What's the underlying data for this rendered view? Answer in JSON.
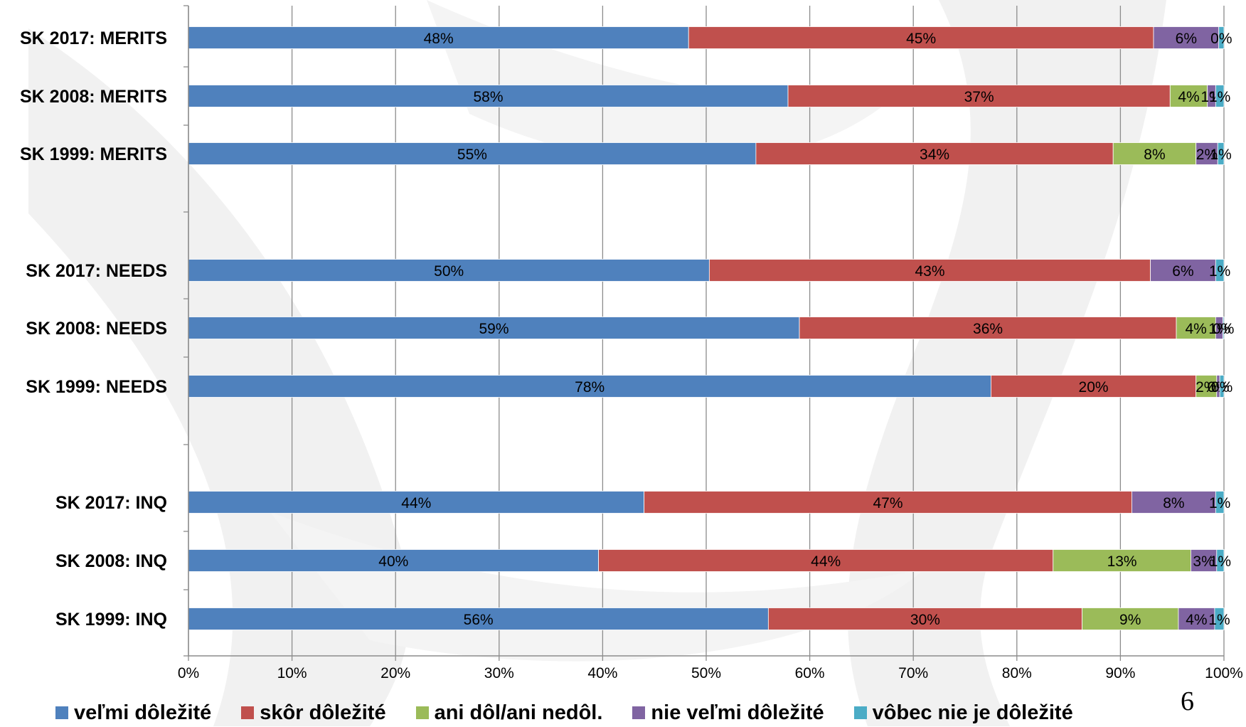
{
  "chart_data": {
    "type": "bar",
    "orientation": "horizontal",
    "stacked": true,
    "categories": [
      "SK 2017: MERITS",
      "SK 2008: MERITS",
      "SK 1999: MERITS",
      "SK 2017: NEEDS",
      "SK 2008: NEEDS",
      "SK 1999: NEEDS",
      "SK 2017: INQ",
      "SK 2008: INQ",
      "SK 1999: INQ"
    ],
    "series": [
      {
        "name": "veľmi dôležité",
        "color": "#4f81bd",
        "values": [
          48.3,
          57.9,
          54.8,
          50.3,
          59.0,
          77.5,
          44.0,
          39.6,
          56.0
        ],
        "labels": [
          "48%",
          "58%",
          "55%",
          "50%",
          "59%",
          "78%",
          "44%",
          "40%",
          "56%"
        ]
      },
      {
        "name": "skôr dôležité",
        "color": "#c0504d",
        "values": [
          44.9,
          36.9,
          34.5,
          42.6,
          36.4,
          19.8,
          47.1,
          43.9,
          30.3
        ],
        "labels": [
          "45%",
          "37%",
          "34%",
          "43%",
          "36%",
          "20%",
          "47%",
          "44%",
          "30%"
        ]
      },
      {
        "name": "ani dôl/ani nedôl.",
        "color": "#9bbb59",
        "values": [
          0,
          3.6,
          8.0,
          0,
          3.8,
          2.0,
          0,
          13.3,
          9.3
        ],
        "labels": [
          "",
          "4%",
          "8%",
          "",
          "4%",
          "2%",
          "",
          "13%",
          "9%"
        ]
      },
      {
        "name": "nie veľmi dôležité",
        "color": "#8064a2",
        "values": [
          6.3,
          0.8,
          2.1,
          6.3,
          0.7,
          0.3,
          8.1,
          2.5,
          3.5
        ],
        "labels": [
          "6%",
          "1%",
          "2%",
          "6%",
          "1%",
          "0%",
          "8%",
          "3%",
          "4%"
        ]
      },
      {
        "name": "vôbec nie je dôležité",
        "color": "#4bacc6",
        "values": [
          0.5,
          0.8,
          0.6,
          0.8,
          0.1,
          0.4,
          0.8,
          0.7,
          0.9
        ],
        "labels": [
          "0%",
          "1%",
          "1%",
          "1%",
          "0%",
          "0%",
          "1%",
          "1%",
          "1%"
        ]
      }
    ],
    "xlim": [
      0,
      100
    ],
    "x_ticks": [
      "0%",
      "10%",
      "20%",
      "30%",
      "40%",
      "50%",
      "60%",
      "70%",
      "80%",
      "90%",
      "100%"
    ],
    "grid": true,
    "legend_position": "bottom"
  },
  "page_number": "6"
}
